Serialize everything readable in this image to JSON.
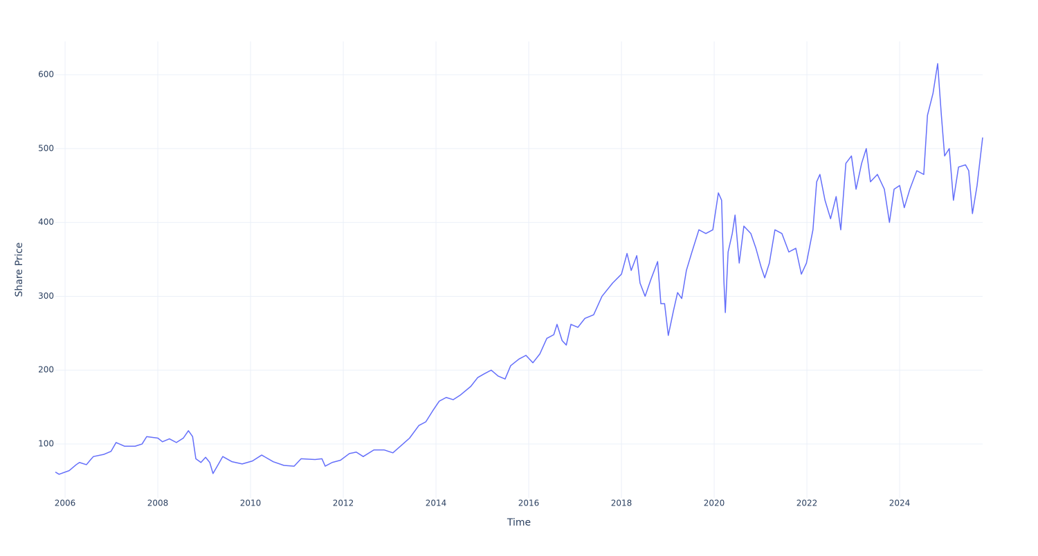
{
  "chart_data": {
    "type": "line",
    "x_label": "Time",
    "y_label": "Share Price",
    "color": "#636efa",
    "grid": true,
    "xlim": [
      2005.79,
      2025.79
    ],
    "ylim": [
      27,
      645
    ],
    "xticks": [
      2006,
      2008,
      2010,
      2012,
      2014,
      2016,
      2018,
      2020,
      2022,
      2024
    ],
    "yticks": [
      100,
      200,
      300,
      400,
      500,
      600
    ],
    "x": [
      2005.79,
      2005.87,
      2006.09,
      2006.24,
      2006.31,
      2006.46,
      2006.54,
      2006.61,
      2006.84,
      2006.99,
      2007.1,
      2007.28,
      2007.51,
      2007.66,
      2007.76,
      2008.0,
      2008.1,
      2008.25,
      2008.4,
      2008.55,
      2008.66,
      2008.75,
      2008.82,
      2008.93,
      2009.03,
      2009.12,
      2009.19,
      2009.3,
      2009.4,
      2009.6,
      2009.82,
      2010.04,
      2010.24,
      2010.49,
      2010.72,
      2010.94,
      2011.09,
      2011.39,
      2011.54,
      2011.61,
      2011.76,
      2011.94,
      2012.13,
      2012.28,
      2012.43,
      2012.66,
      2012.88,
      2013.07,
      2013.25,
      2013.43,
      2013.63,
      2013.78,
      2013.93,
      2014.07,
      2014.22,
      2014.37,
      2014.52,
      2014.75,
      2014.9,
      2015.04,
      2015.19,
      2015.34,
      2015.49,
      2015.61,
      2015.79,
      2015.94,
      2016.09,
      2016.24,
      2016.39,
      2016.54,
      2016.61,
      2016.72,
      2016.81,
      2016.91,
      2017.06,
      2017.21,
      2017.4,
      2017.58,
      2017.81,
      2018.0,
      2018.12,
      2018.21,
      2018.33,
      2018.4,
      2018.51,
      2018.63,
      2018.78,
      2018.85,
      2018.93,
      2019.01,
      2019.12,
      2019.21,
      2019.3,
      2019.4,
      2019.52,
      2019.67,
      2019.82,
      2019.97,
      2020.09,
      2020.16,
      2020.21,
      2020.24,
      2020.3,
      2020.39,
      2020.45,
      2020.54,
      2020.64,
      2020.79,
      2020.9,
      2021.01,
      2021.09,
      2021.19,
      2021.31,
      2021.46,
      2021.61,
      2021.76,
      2021.88,
      2021.99,
      2022.13,
      2022.21,
      2022.28,
      2022.39,
      2022.51,
      2022.63,
      2022.73,
      2022.84,
      2022.96,
      2023.06,
      2023.18,
      2023.28,
      2023.37,
      2023.52,
      2023.67,
      2023.78,
      2023.88,
      2024.0,
      2024.1,
      2024.22,
      2024.37,
      2024.52,
      2024.6,
      2024.72,
      2024.82,
      2024.9,
      2024.97,
      2025.07,
      2025.16,
      2025.27,
      2025.42,
      2025.49,
      2025.57,
      2025.67,
      2025.79
    ],
    "values": [
      62,
      59,
      64,
      72,
      75,
      72,
      78,
      83,
      86,
      90,
      102,
      97,
      97,
      100,
      110,
      108,
      103,
      107,
      102,
      108,
      118,
      110,
      80,
      75,
      82,
      75,
      60,
      72,
      83,
      76,
      73,
      77,
      85,
      76,
      71,
      70,
      80,
      79,
      80,
      70,
      75,
      78,
      87,
      89,
      83,
      92,
      92,
      88,
      98,
      108,
      125,
      130,
      145,
      158,
      163,
      160,
      166,
      178,
      190,
      195,
      200,
      192,
      188,
      206,
      215,
      220,
      210,
      222,
      243,
      248,
      262,
      240,
      234,
      262,
      258,
      270,
      275,
      300,
      318,
      330,
      358,
      335,
      355,
      318,
      300,
      322,
      347,
      290,
      290,
      247,
      280,
      305,
      297,
      335,
      360,
      390,
      385,
      390,
      440,
      430,
      320,
      278,
      360,
      385,
      410,
      345,
      395,
      385,
      365,
      340,
      325,
      345,
      390,
      385,
      360,
      365,
      330,
      345,
      390,
      455,
      465,
      430,
      405,
      435,
      390,
      480,
      490,
      445,
      480,
      500,
      455,
      465,
      445,
      400,
      445,
      450,
      420,
      445,
      470,
      465,
      545,
      575,
      615,
      545,
      490,
      500,
      430,
      475,
      478,
      470,
      412,
      450,
      515
    ]
  }
}
